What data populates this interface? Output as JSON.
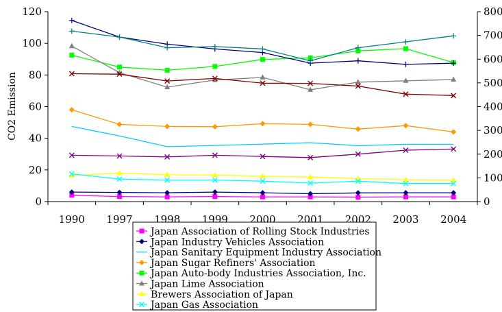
{
  "chart_data": {
    "type": "line",
    "ylabel": "CO2 Emission",
    "categories": [
      "1990",
      "1997",
      "1998",
      "1999",
      "2000",
      "2001",
      "2002",
      "2003",
      "2004"
    ],
    "ylim_left": [
      0,
      120
    ],
    "ylim_right": [
      0,
      800
    ],
    "yticks_left": [
      "0",
      "20",
      "40",
      "60",
      "80",
      "100",
      "120"
    ],
    "yticks_right": [
      "0",
      "100",
      "200",
      "300",
      "400",
      "500",
      "600",
      "700",
      "800"
    ],
    "grid": false,
    "legend_position": "bottom",
    "series": [
      {
        "name": "Japan Association of Rolling Stock Industries",
        "axis": "left",
        "color": "#ff00ff",
        "marker": "square",
        "values": [
          4,
          3.2,
          3,
          3.2,
          3,
          3,
          2.8,
          3,
          3
        ]
      },
      {
        "name": "Japan Industry Vehicles Association",
        "axis": "left",
        "color": "#000080",
        "marker": "diamond",
        "values": [
          6,
          5.8,
          5.6,
          6,
          5.6,
          5,
          5.5,
          5.6,
          5.6
        ]
      },
      {
        "name": "Japan Sanitary Equipment Industry Association",
        "axis": "left",
        "color": "#00ccff",
        "marker": "none",
        "values": [
          47.5,
          41.5,
          34.7,
          35.5,
          36.3,
          37.2,
          35.3,
          36.2,
          36.2
        ]
      },
      {
        "name": "Japan Sugar Refiners' Association",
        "axis": "left",
        "color": "#ff9900",
        "marker": "diamond",
        "values": [
          58,
          48.8,
          47.5,
          47.3,
          49.2,
          48.8,
          45.8,
          48,
          44
        ]
      },
      {
        "name": "Japan Auto-body Industries Association, Inc.",
        "axis": "left",
        "color": "#00ff00",
        "marker": "square",
        "values": [
          92.5,
          85,
          83,
          85.4,
          89.8,
          90.8,
          95.2,
          96.6,
          87.8
        ]
      },
      {
        "name": "Japan Lime Association",
        "axis": "right",
        "color": "#808080",
        "marker": "triangle",
        "values": [
          655,
          543,
          482,
          512,
          523,
          471,
          503,
          509,
          514
        ]
      },
      {
        "name": "Brewers Association of Japan",
        "axis": "left",
        "color": "#ffff00",
        "marker": "triangle",
        "values": [
          16.5,
          18,
          17,
          16.8,
          16,
          15.5,
          14.5,
          13.8,
          13.5
        ]
      },
      {
        "name": "Japan Gas Association",
        "axis": "left",
        "color": "#00ffff",
        "marker": "x",
        "values": [
          17.5,
          14.2,
          13.6,
          13.6,
          12.9,
          11.7,
          12.9,
          11.4,
          11.4
        ]
      },
      {
        "name": "",
        "axis": "right",
        "color": "#000080",
        "marker": "plus",
        "values": [
          763,
          693,
          663,
          643,
          628,
          583,
          593,
          578,
          583
        ]
      },
      {
        "name": "",
        "axis": "right",
        "color": "#008080",
        "marker": "plus",
        "values": [
          718,
          693,
          648,
          653,
          643,
          593,
          648,
          673,
          698
        ]
      },
      {
        "name": "",
        "axis": "left",
        "color": "#800000",
        "marker": "x",
        "values": [
          80.8,
          80.5,
          76.2,
          77.8,
          74.8,
          74.7,
          73,
          67.9,
          67
        ]
      },
      {
        "name": "",
        "axis": "left",
        "color": "#800080",
        "marker": "x",
        "values": [
          29.3,
          28.8,
          28.2,
          29.3,
          28.5,
          27.8,
          30,
          32.5,
          33.2
        ]
      }
    ]
  }
}
